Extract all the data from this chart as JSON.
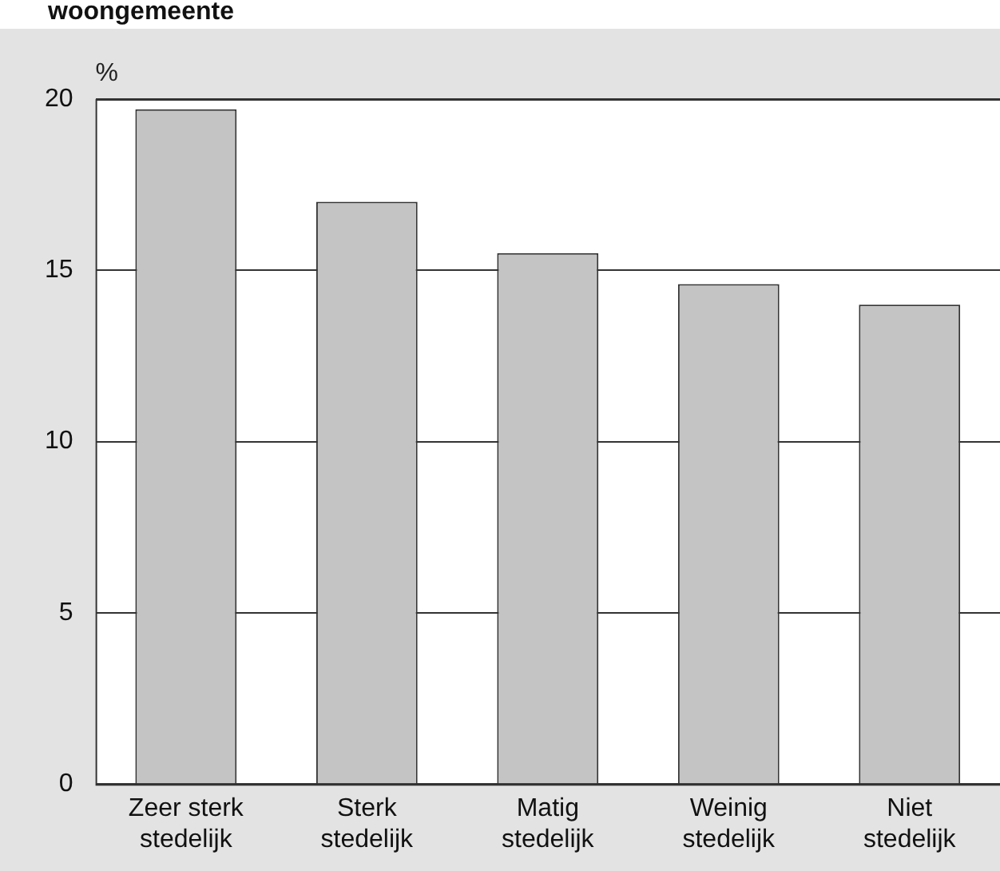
{
  "chart_data": {
    "type": "bar",
    "title": "woongemeente",
    "ylabel": "%",
    "categories": [
      "Zeer sterk stedelijk",
      "Sterk stedelijk",
      "Matig stedelijk",
      "Weinig stedelijk",
      "Niet stedelijk"
    ],
    "values": [
      19.7,
      17.0,
      15.5,
      14.6,
      14.0
    ],
    "color": "#c4c4c4",
    "ylim": [
      0,
      20
    ],
    "yticks": [
      0,
      5,
      10,
      15,
      20
    ],
    "grid": "y",
    "legend": false
  }
}
